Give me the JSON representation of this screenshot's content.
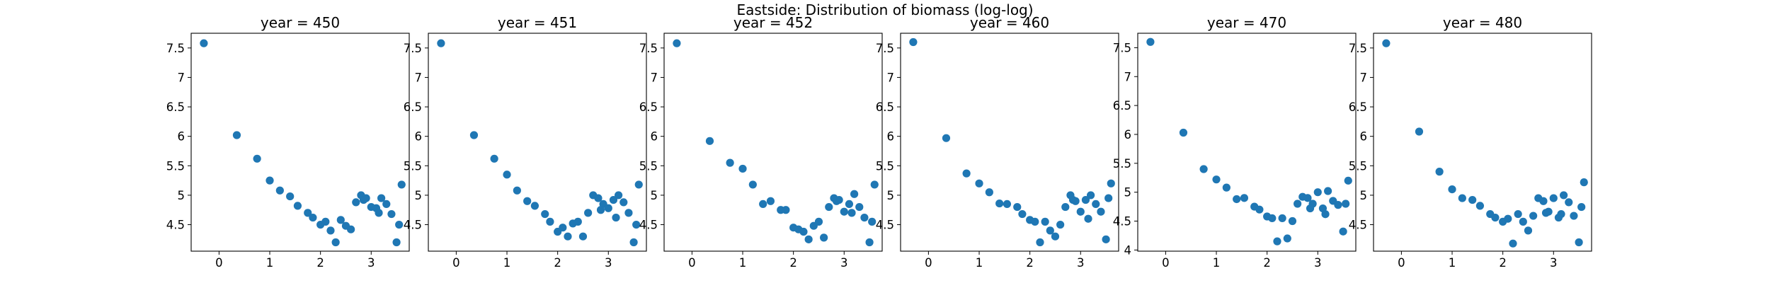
{
  "figure": {
    "suptitle": "Eastside: Distribution of biomass (log-log)",
    "point_color": "#1f77b4"
  },
  "chart_data": [
    {
      "type": "scatter",
      "title": "year = 450",
      "xlim": [
        -0.55,
        3.75
      ],
      "ylim": [
        4.05,
        7.75
      ],
      "xticks": [
        0,
        1,
        2,
        3
      ],
      "yticks": [
        4.5,
        5.0,
        5.5,
        6.0,
        6.5,
        7.0,
        7.5
      ],
      "x": [
        -0.3,
        0.35,
        0.75,
        1.0,
        1.2,
        1.4,
        1.55,
        1.75,
        1.85,
        2.0,
        2.1,
        2.2,
        2.3,
        2.4,
        2.5,
        2.6,
        2.7,
        2.8,
        2.9,
        3.0,
        3.1,
        3.2,
        3.3,
        3.4,
        3.5,
        3.6,
        3.15,
        3.55,
        2.85
      ],
      "y": [
        7.58,
        6.02,
        5.62,
        5.25,
        5.08,
        4.98,
        4.82,
        4.7,
        4.62,
        4.5,
        4.55,
        4.4,
        4.2,
        4.58,
        4.48,
        4.42,
        4.88,
        5.0,
        4.95,
        4.8,
        4.78,
        4.95,
        4.85,
        4.68,
        4.2,
        5.18,
        4.7,
        4.5,
        4.92
      ]
    },
    {
      "type": "scatter",
      "title": "year = 451",
      "xlim": [
        -0.55,
        3.75
      ],
      "ylim": [
        4.05,
        7.75
      ],
      "xticks": [
        0,
        1,
        2,
        3
      ],
      "yticks": [
        4.5,
        5.0,
        5.5,
        6.0,
        6.5,
        7.0,
        7.5
      ],
      "x": [
        -0.3,
        0.35,
        0.75,
        1.0,
        1.2,
        1.4,
        1.55,
        1.75,
        1.85,
        2.0,
        2.1,
        2.2,
        2.3,
        2.4,
        2.5,
        2.6,
        2.7,
        2.8,
        2.9,
        3.0,
        3.1,
        3.2,
        3.3,
        3.4,
        3.5,
        3.6,
        3.15,
        3.55,
        2.85
      ],
      "y": [
        7.58,
        6.02,
        5.62,
        5.35,
        5.08,
        4.9,
        4.82,
        4.68,
        4.55,
        4.38,
        4.45,
        4.3,
        4.52,
        4.55,
        4.3,
        4.7,
        5.0,
        4.95,
        4.85,
        4.78,
        4.92,
        5.0,
        4.88,
        4.7,
        4.2,
        5.18,
        4.62,
        4.5,
        4.75
      ]
    },
    {
      "type": "scatter",
      "title": "year = 452",
      "xlim": [
        -0.55,
        3.75
      ],
      "ylim": [
        4.05,
        7.75
      ],
      "xticks": [
        0,
        1,
        2,
        3
      ],
      "yticks": [
        4.5,
        5.0,
        5.5,
        6.0,
        6.5,
        7.0,
        7.5
      ],
      "x": [
        -0.3,
        0.35,
        0.75,
        1.0,
        1.2,
        1.4,
        1.55,
        1.75,
        1.85,
        2.0,
        2.1,
        2.2,
        2.3,
        2.4,
        2.5,
        2.6,
        2.7,
        2.8,
        2.9,
        3.0,
        3.1,
        3.2,
        3.3,
        3.4,
        3.5,
        3.6,
        3.15,
        3.55,
        2.85
      ],
      "y": [
        7.58,
        5.92,
        5.55,
        5.45,
        5.18,
        4.85,
        4.9,
        4.75,
        4.75,
        4.45,
        4.42,
        4.38,
        4.25,
        4.48,
        4.55,
        4.28,
        4.8,
        4.95,
        4.92,
        4.72,
        4.85,
        5.02,
        4.8,
        4.62,
        4.2,
        5.18,
        4.7,
        4.55,
        4.9
      ]
    },
    {
      "type": "scatter",
      "title": "year = 460",
      "xlim": [
        -0.55,
        3.75
      ],
      "ylim": [
        4.05,
        7.75
      ],
      "xticks": [
        0,
        1,
        2,
        3
      ],
      "yticks": [
        4.5,
        5.0,
        5.5,
        6.0,
        6.5,
        7.0,
        7.5
      ],
      "x": [
        -0.3,
        0.35,
        0.75,
        1.0,
        1.2,
        1.4,
        1.55,
        1.75,
        1.85,
        2.0,
        2.1,
        2.2,
        2.3,
        2.4,
        2.5,
        2.6,
        2.7,
        2.8,
        2.9,
        3.0,
        3.1,
        3.2,
        3.3,
        3.4,
        3.5,
        3.6,
        3.15,
        3.55,
        2.85
      ],
      "y": [
        7.6,
        5.97,
        5.37,
        5.2,
        5.05,
        4.86,
        4.85,
        4.8,
        4.68,
        4.58,
        4.55,
        4.2,
        4.55,
        4.4,
        4.3,
        4.5,
        4.8,
        5.0,
        4.9,
        4.72,
        4.92,
        5.0,
        4.85,
        4.72,
        4.25,
        5.2,
        4.6,
        4.95,
        4.92
      ]
    },
    {
      "type": "scatter",
      "title": "year = 470",
      "xlim": [
        -0.55,
        3.75
      ],
      "ylim": [
        3.98,
        7.75
      ],
      "xticks": [
        0,
        1,
        2,
        3
      ],
      "yticks": [
        4.0,
        4.5,
        5.0,
        5.5,
        6.0,
        6.5,
        7.0,
        7.5
      ],
      "x": [
        -0.3,
        0.35,
        0.75,
        1.0,
        1.2,
        1.4,
        1.55,
        1.75,
        1.85,
        2.0,
        2.1,
        2.2,
        2.3,
        2.4,
        2.5,
        2.6,
        2.7,
        2.8,
        2.9,
        3.0,
        3.1,
        3.2,
        3.3,
        3.4,
        3.5,
        3.6,
        3.15,
        3.55,
        2.85
      ],
      "y": [
        7.6,
        6.03,
        5.4,
        5.22,
        5.08,
        4.88,
        4.9,
        4.75,
        4.7,
        4.58,
        4.55,
        4.15,
        4.55,
        4.2,
        4.5,
        4.8,
        4.92,
        4.9,
        4.8,
        5.0,
        4.72,
        5.02,
        4.85,
        4.78,
        4.32,
        5.2,
        4.62,
        4.8,
        4.72
      ]
    },
    {
      "type": "scatter",
      "title": "year = 480",
      "xlim": [
        -0.55,
        3.75
      ],
      "ylim": [
        4.05,
        7.75
      ],
      "xticks": [
        0,
        1,
        2,
        3
      ],
      "yticks": [
        4.5,
        5.0,
        5.5,
        6.0,
        6.5,
        7.0,
        7.5
      ],
      "x": [
        -0.3,
        0.35,
        0.75,
        1.0,
        1.2,
        1.4,
        1.55,
        1.75,
        1.85,
        2.0,
        2.1,
        2.2,
        2.3,
        2.4,
        2.5,
        2.6,
        2.7,
        2.8,
        2.9,
        3.0,
        3.1,
        3.2,
        3.3,
        3.4,
        3.5,
        3.6,
        3.15,
        3.55,
        2.85
      ],
      "y": [
        7.58,
        6.08,
        5.4,
        5.1,
        4.95,
        4.92,
        4.82,
        4.68,
        4.62,
        4.55,
        4.6,
        4.18,
        4.68,
        4.55,
        4.4,
        4.65,
        4.95,
        4.9,
        4.72,
        4.95,
        4.62,
        5.0,
        4.88,
        4.65,
        4.2,
        5.22,
        4.68,
        4.8,
        4.7
      ]
    }
  ]
}
